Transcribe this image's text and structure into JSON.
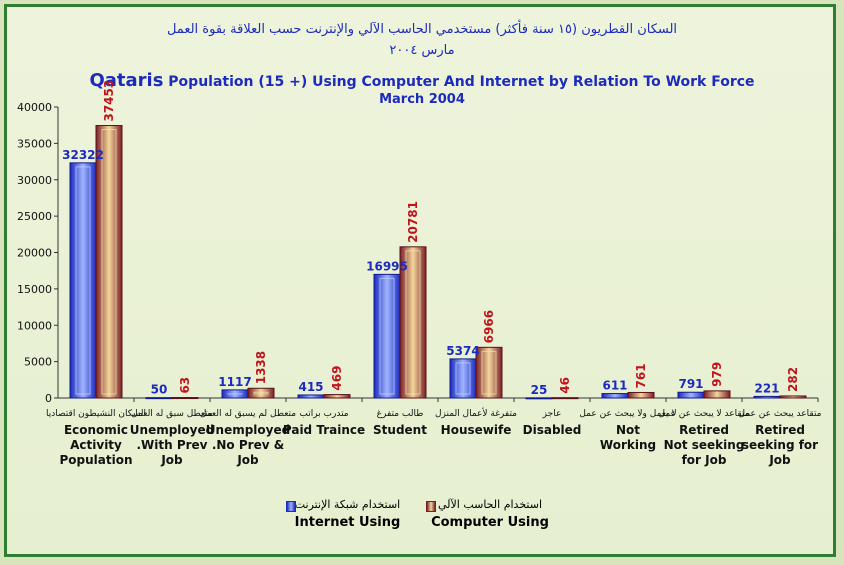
{
  "chart_data": {
    "type": "bar",
    "title_ar_line1": "السكان القطريون (١٥ سنة فأكثر) مستخدمي الحاسب الآلي والإنترنت حسب العلاقة بقوة العمل",
    "title_ar_line2": "مارس ٢٠٠٤",
    "title_prefix": "Qataris",
    "title_main": "Population (15 +) Using Computer And Internet by Relation To Work Force",
    "subtitle": "March 2004",
    "ylim": [
      0,
      40000
    ],
    "yticks": [
      0,
      5000,
      10000,
      15000,
      20000,
      25000,
      30000,
      35000,
      40000
    ],
    "categories": [
      {
        "ar": "السكان النشيطون اقتصاديا",
        "en": [
          "Economic",
          "Activity",
          "Population"
        ]
      },
      {
        "ar": "متعطل سبق له العمل",
        "en": [
          "Unemployed",
          ".With Prev",
          "Job"
        ]
      },
      {
        "ar": "متعطل لم يسبق له العمل",
        "en": [
          "Unemployed",
          ".No Prev &",
          "Job"
        ]
      },
      {
        "ar": "متدرب براتب",
        "en": [
          "Paid Traince"
        ]
      },
      {
        "ar": "طالب متفرغ",
        "en": [
          "Student"
        ]
      },
      {
        "ar": "متفرغة لأعمال المنزل",
        "en": [
          "Housewife"
        ]
      },
      {
        "ar": "عاجز",
        "en": [
          "Disabled"
        ]
      },
      {
        "ar": "لا يعمل ولا يبحث عن عمل",
        "en": [
          "Not",
          "Working"
        ]
      },
      {
        "ar": "متقاعد لا يبحث عن عمل",
        "en": [
          "Retired",
          "Not seeking",
          "for Job"
        ]
      },
      {
        "ar": "متقاعد يبحث عن عمل",
        "en": [
          "Retired",
          "seeking for",
          "Job"
        ]
      }
    ],
    "series": [
      {
        "name": "Internet Using",
        "name_ar": "استخدام شبكة الإنترنت",
        "color": "#2b3fd6",
        "label_color": "#1d2bbd",
        "values": [
          32322,
          50,
          1117,
          415,
          16995,
          5374,
          25,
          611,
          791,
          221
        ]
      },
      {
        "name": "Computer Using",
        "name_ar": "استخدام الحاسب الآلي",
        "color": "#8e2b33",
        "label_color": "#c0141c",
        "values": [
          37453,
          63,
          1338,
          469,
          20781,
          6966,
          46,
          761,
          979,
          282
        ]
      }
    ],
    "grid": false,
    "legend": "bottom-center"
  }
}
